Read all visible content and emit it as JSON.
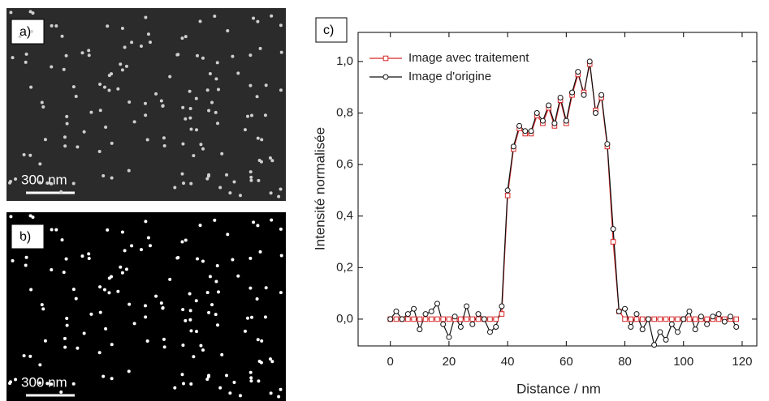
{
  "panels": [
    {
      "label": "a)",
      "scale_bar": "300 nm"
    },
    {
      "label": "b)",
      "scale_bar": "300 nm"
    },
    {
      "label": "c)"
    }
  ],
  "chart_data": {
    "type": "line",
    "x_label": "Distance / nm",
    "y_label": "Intensité normalisée",
    "xlim": [
      -11,
      125
    ],
    "ylim": [
      -0.104,
      1.113
    ],
    "xticks": [
      0,
      20,
      40,
      60,
      80,
      100,
      120
    ],
    "yticks": [
      {
        "value": 0,
        "label": "0,0"
      },
      {
        "value": 0.2,
        "label": "0,2"
      },
      {
        "value": 0.4,
        "label": "0,4"
      },
      {
        "value": 0.6,
        "label": "0,6"
      },
      {
        "value": 0.8,
        "label": "0,8"
      },
      {
        "value": 1,
        "label": "1,0"
      }
    ],
    "legend": "top-left",
    "x": [
      0,
      2,
      4,
      6,
      8,
      10,
      12,
      14,
      16,
      18,
      20,
      22,
      24,
      26,
      28,
      30,
      32,
      34,
      36,
      38,
      40,
      42,
      44,
      46,
      48,
      50,
      52,
      54,
      56,
      58,
      60,
      62,
      64,
      66,
      68,
      70,
      72,
      74,
      76,
      78,
      80,
      82,
      84,
      86,
      88,
      90,
      92,
      94,
      96,
      98,
      100,
      102,
      104,
      106,
      108,
      110,
      112,
      114,
      116,
      118
    ],
    "series": [
      {
        "name": "Image avec traitement",
        "color": "#d62728",
        "marker": "square",
        "values": [
          0,
          0,
          0,
          0,
          0,
          0,
          0,
          0,
          0,
          0,
          0,
          0,
          0,
          0,
          0,
          0,
          0,
          0,
          0,
          0.02,
          0.48,
          0.66,
          0.74,
          0.72,
          0.72,
          0.79,
          0.76,
          0.82,
          0.75,
          0.85,
          0.76,
          0.87,
          0.95,
          0.88,
          0.99,
          0.81,
          0.86,
          0.67,
          0.3,
          0.03,
          0,
          0,
          0,
          0,
          0,
          0,
          0,
          0,
          0,
          0,
          0,
          0,
          0,
          0,
          0,
          0,
          0,
          0,
          0,
          0
        ]
      },
      {
        "name": "Image d'origine",
        "color": "#111111",
        "marker": "circle",
        "values": [
          0,
          0.03,
          0,
          0.02,
          0.04,
          -0.04,
          0.02,
          0.03,
          0.06,
          -0.02,
          -0.07,
          0.01,
          -0.03,
          0.05,
          -0.02,
          0.02,
          0,
          -0.05,
          -0.03,
          0.05,
          0.5,
          0.67,
          0.75,
          0.73,
          0.73,
          0.8,
          0.77,
          0.83,
          0.76,
          0.86,
          0.77,
          0.88,
          0.96,
          0.87,
          1,
          0.8,
          0.87,
          0.68,
          0.35,
          0.03,
          0.04,
          -0.03,
          0.02,
          -0.04,
          0,
          -0.1,
          -0.05,
          -0.08,
          -0.02,
          -0.05,
          0,
          0.03,
          -0.04,
          0.01,
          -0.02,
          0.01,
          0.02,
          -0.01,
          0.01,
          -0.03
        ]
      }
    ]
  }
}
